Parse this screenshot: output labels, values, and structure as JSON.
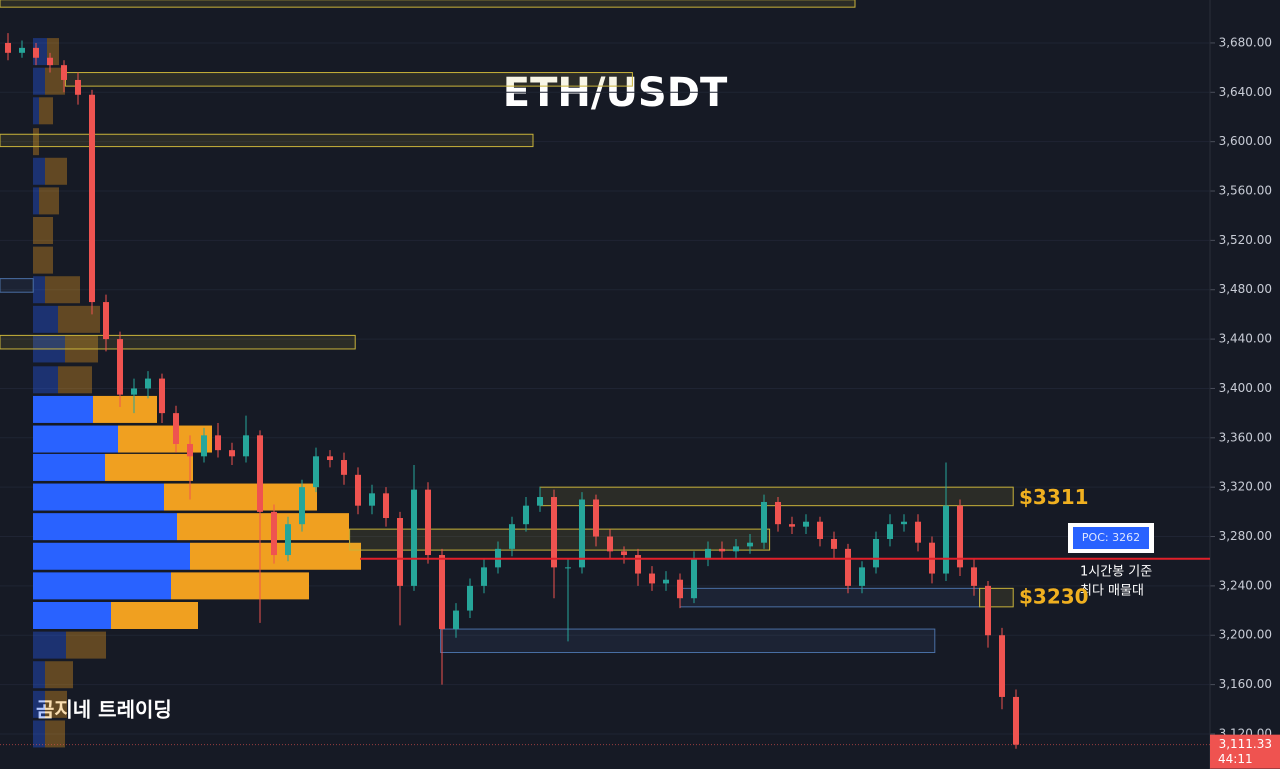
{
  "chart_data": {
    "type": "candlestick",
    "title": "ETH/USDT",
    "watermark": "곰지네 트레이딩",
    "ylim": [
      3091.6,
      3714.8
    ],
    "yticks": [
      {
        "value": 3120,
        "label": "3,120.00"
      },
      {
        "value": 3160,
        "label": "3,160.00"
      },
      {
        "value": 3200,
        "label": "3,200.00"
      },
      {
        "value": 3240,
        "label": "3,240.00"
      },
      {
        "value": 3280,
        "label": "3,280.00"
      },
      {
        "value": 3320,
        "label": "3,320.00"
      },
      {
        "value": 3360,
        "label": "3,360.00"
      },
      {
        "value": 3400,
        "label": "3,400.00"
      },
      {
        "value": 3440,
        "label": "3,440.00"
      },
      {
        "value": 3480,
        "label": "3,480.00"
      },
      {
        "value": 3520,
        "label": "3,520.00"
      },
      {
        "value": 3560,
        "label": "3,560.00"
      },
      {
        "value": 3600,
        "label": "3,600.00"
      },
      {
        "value": 3640,
        "label": "3,640.00"
      },
      {
        "value": 3680,
        "label": "3,680.00"
      }
    ],
    "grid": true,
    "up_color": "#26a69a",
    "down_color": "#ef5350",
    "open": [
      3680,
      3672,
      3676,
      3668,
      3662,
      3650,
      3638,
      3470,
      3440,
      3395,
      3400,
      3408,
      3380,
      3355,
      3345,
      3362,
      3350,
      3345,
      3362,
      3300,
      3265,
      3290,
      3320,
      3345,
      3342,
      3330,
      3305,
      3315,
      3295,
      3240,
      3318,
      3265,
      3205,
      3220,
      3240,
      3255,
      3270,
      3290,
      3305,
      3312,
      3255,
      3255,
      3310,
      3280,
      3268,
      3265,
      3250,
      3242,
      3245,
      3230,
      3262,
      3270,
      3268,
      3272,
      3275,
      3308,
      3290,
      3288,
      3292,
      3278,
      3270,
      3240,
      3255,
      3278,
      3290,
      3292,
      3275,
      3250,
      3305,
      3255,
      3240,
      3200,
      3150
    ],
    "high": [
      3688,
      3682,
      3680,
      3672,
      3666,
      3656,
      3642,
      3476,
      3446,
      3408,
      3414,
      3412,
      3386,
      3362,
      3368,
      3372,
      3356,
      3378,
      3366,
      3306,
      3296,
      3326,
      3352,
      3350,
      3348,
      3336,
      3322,
      3320,
      3300,
      3338,
      3324,
      3270,
      3226,
      3246,
      3262,
      3276,
      3296,
      3312,
      3320,
      3318,
      3262,
      3316,
      3314,
      3286,
      3272,
      3270,
      3256,
      3252,
      3250,
      3268,
      3276,
      3276,
      3278,
      3282,
      3314,
      3312,
      3296,
      3298,
      3296,
      3284,
      3274,
      3260,
      3284,
      3298,
      3298,
      3298,
      3280,
      3340,
      3310,
      3262,
      3244,
      3206,
      3156
    ],
    "low": [
      3666,
      3668,
      3662,
      3656,
      3640,
      3630,
      3460,
      3430,
      3385,
      3380,
      3392,
      3372,
      3348,
      3310,
      3340,
      3344,
      3338,
      3340,
      3210,
      3258,
      3260,
      3284,
      3316,
      3336,
      3322,
      3298,
      3298,
      3288,
      3208,
      3236,
      3258,
      3160,
      3198,
      3214,
      3234,
      3250,
      3264,
      3284,
      3300,
      3230,
      3195,
      3250,
      3272,
      3262,
      3258,
      3240,
      3236,
      3236,
      3222,
      3226,
      3256,
      3262,
      3262,
      3266,
      3270,
      3284,
      3282,
      3282,
      3272,
      3262,
      3234,
      3234,
      3250,
      3272,
      3284,
      3268,
      3242,
      3244,
      3248,
      3232,
      3190,
      3140,
      3108
    ],
    "close": [
      3672,
      3676,
      3668,
      3662,
      3650,
      3638,
      3470,
      3440,
      3395,
      3400,
      3408,
      3380,
      3355,
      3345,
      3362,
      3350,
      3345,
      3362,
      3300,
      3265,
      3290,
      3320,
      3345,
      3342,
      3330,
      3305,
      3315,
      3295,
      3240,
      3318,
      3265,
      3205,
      3220,
      3240,
      3255,
      3270,
      3290,
      3305,
      3312,
      3255,
      3255,
      3310,
      3280,
      3268,
      3265,
      3250,
      3242,
      3245,
      3230,
      3262,
      3270,
      3268,
      3272,
      3275,
      3308,
      3290,
      3288,
      3292,
      3278,
      3270,
      3240,
      3255,
      3278,
      3290,
      3292,
      3275,
      3250,
      3305,
      3255,
      3240,
      3200,
      3150,
      3111.33
    ],
    "volume_profile": {
      "price": [
        3673,
        3649,
        3625,
        3600,
        3576,
        3552,
        3528,
        3504,
        3480,
        3456,
        3432,
        3407,
        3383,
        3359,
        3336,
        3312,
        3288,
        3264,
        3240,
        3216,
        3192,
        3168,
        3144,
        3120
      ],
      "buy": [
        14,
        12,
        6,
        0,
        12,
        6,
        0,
        0,
        12,
        25,
        32,
        25,
        60,
        85,
        72,
        131,
        144,
        157,
        138,
        78,
        33,
        12,
        12,
        12
      ],
      "sell": [
        12,
        20,
        14,
        6,
        22,
        20,
        20,
        20,
        35,
        42,
        33,
        34,
        64,
        94,
        88,
        153,
        172,
        171,
        138,
        87,
        40,
        28,
        22,
        20
      ],
      "buy_color": "#2962ff",
      "sell_color": "#f0a020"
    },
    "zones": [
      {
        "ymin": 3709,
        "ymax": 3715,
        "start": -0.6,
        "end": 60.5,
        "color": "#c9b33a"
      },
      {
        "ymin": 3645,
        "ymax": 3656,
        "start": 4.1,
        "end": 44.6,
        "color": "#c9b33a"
      },
      {
        "ymin": 3596,
        "ymax": 3606,
        "start": -0.6,
        "end": 37.5,
        "color": "#c9b33a"
      },
      {
        "ymin": 3478,
        "ymax": 3489,
        "start": -0.6,
        "end": 1.8,
        "color": "#4a6fa5"
      },
      {
        "ymin": 3432,
        "ymax": 3443,
        "start": -0.6,
        "end": 24.8,
        "color": "#c9b33a"
      },
      {
        "ymin": 3305,
        "ymax": 3320,
        "start": 38,
        "end": 71.8,
        "color": "#c9b33a"
      },
      {
        "ymin": 3269,
        "ymax": 3286,
        "start": 24.4,
        "end": 54.4,
        "color": "#c9b33a"
      },
      {
        "ymin": 3223,
        "ymax": 3238,
        "start": 48,
        "end": 69.4,
        "color": "#4a6fa5"
      },
      {
        "ymin": 3223,
        "ymax": 3238,
        "start": 69.4,
        "end": 71.8,
        "color": "#c9b33a"
      },
      {
        "ymin": 3186,
        "ymax": 3205,
        "start": 30.9,
        "end": 66.2,
        "color": "#4a6fa5"
      }
    ],
    "zone_labels": [
      {
        "text": "$3311",
        "value": 3311
      },
      {
        "text": "$3230",
        "value": 3230
      }
    ],
    "poc": {
      "value": 3262,
      "label": "POC: 3262",
      "color": "#e0202a",
      "note_line1": "1시간봉 기준",
      "note_line2": "최다 매물대"
    },
    "last_price": {
      "value": 3111.33,
      "label": "3,111.33",
      "countdown": "44:11"
    }
  }
}
